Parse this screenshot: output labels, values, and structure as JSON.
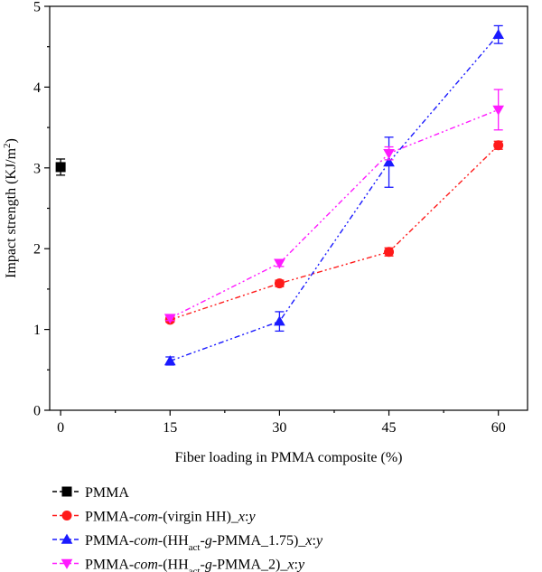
{
  "chart_data": {
    "type": "line",
    "xlabel": "Fiber loading in PMMA composite (%)",
    "ylabel": "Impact strength (KJ/m²)",
    "xlim": [
      -1.5,
      64
    ],
    "ylim": [
      0,
      5
    ],
    "x_ticks": [
      0,
      15,
      30,
      45,
      60
    ],
    "y_ticks": [
      0,
      1,
      2,
      3,
      4,
      5
    ],
    "grid": false,
    "legend_position": "bottom",
    "series": [
      {
        "name": "PMMA",
        "name_parts": [
          {
            "t": "PMMA",
            "s": "n"
          }
        ],
        "color": "#000000",
        "marker": "square",
        "dash": "6 4",
        "x": [
          0
        ],
        "y": [
          3.01
        ],
        "err": [
          0.1
        ]
      },
      {
        "name": "PMMA-com-(virgin HH)_x:y",
        "name_parts": [
          {
            "t": "PMMA-",
            "s": "n"
          },
          {
            "t": "com",
            "s": "i"
          },
          {
            "t": "-(virgin HH)_",
            "s": "n"
          },
          {
            "t": "x",
            "s": "i"
          },
          {
            "t": ":",
            "s": "n"
          },
          {
            "t": "y",
            "s": "i"
          }
        ],
        "color": "#ff1a1a",
        "marker": "circle",
        "dash": "6 3 2 3 2 3",
        "x": [
          15,
          30,
          45,
          60
        ],
        "y": [
          1.12,
          1.57,
          1.96,
          3.28
        ],
        "err": [
          0.03,
          0.04,
          0.05,
          0.05
        ]
      },
      {
        "name": "PMMA-com-(HHact-g-PMMA_1.75)_x:y",
        "name_parts": [
          {
            "t": "PMMA-",
            "s": "n"
          },
          {
            "t": "com",
            "s": "i"
          },
          {
            "t": "-(HH",
            "s": "n"
          },
          {
            "t": "act",
            "s": "sub"
          },
          {
            "t": "-",
            "s": "n"
          },
          {
            "t": "g",
            "s": "i"
          },
          {
            "t": "-PMMA_1.75)_",
            "s": "n"
          },
          {
            "t": "x",
            "s": "i"
          },
          {
            "t": ":",
            "s": "n"
          },
          {
            "t": "y",
            "s": "i"
          }
        ],
        "color": "#1a1aff",
        "marker": "triangle-up",
        "dash": "6 3 2 3 2 3",
        "x": [
          15,
          30,
          45,
          60
        ],
        "y": [
          0.61,
          1.1,
          3.07,
          4.65
        ],
        "err": [
          0.05,
          0.12,
          0.31,
          0.11
        ]
      },
      {
        "name": "PMMA-com-(HHact-g-PMMA_2)_x:y",
        "name_parts": [
          {
            "t": "PMMA-",
            "s": "n"
          },
          {
            "t": "com",
            "s": "i"
          },
          {
            "t": "-(HH",
            "s": "n"
          },
          {
            "t": "act",
            "s": "sub"
          },
          {
            "t": "-",
            "s": "n"
          },
          {
            "t": "g",
            "s": "i"
          },
          {
            "t": "-PMMA_2)_",
            "s": "n"
          },
          {
            "t": "x",
            "s": "i"
          },
          {
            "t": ":",
            "s": "n"
          },
          {
            "t": "y",
            "s": "i"
          }
        ],
        "color": "#ff1aff",
        "marker": "triangle-down",
        "dash": "6 3 2 3 2 3",
        "x": [
          15,
          30,
          45,
          60
        ],
        "y": [
          1.14,
          1.82,
          3.18,
          3.72
        ],
        "err": [
          0.03,
          0.04,
          0.08,
          0.25
        ]
      }
    ]
  }
}
